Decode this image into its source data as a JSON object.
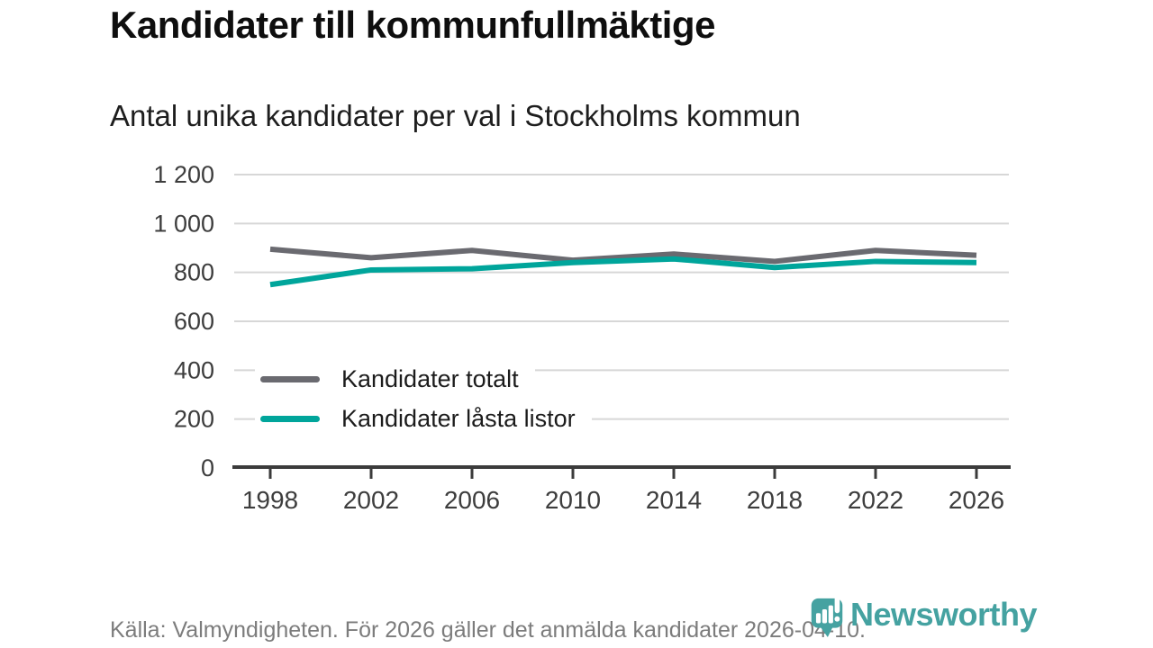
{
  "header": {
    "title": "Kandidater till kommunfullmäktige",
    "subtitle": "Antal unika kandidater per val i Stockholms kommun"
  },
  "chart_data": {
    "type": "line",
    "categories": [
      "1998",
      "2002",
      "2006",
      "2010",
      "2014",
      "2018",
      "2022",
      "2026"
    ],
    "series": [
      {
        "name": "Kandidater totalt",
        "color": "#6a6a70",
        "values": [
          895,
          860,
          890,
          850,
          875,
          845,
          890,
          870
        ]
      },
      {
        "name": "Kandidater låsta listor",
        "color": "#00a59b",
        "values": [
          750,
          810,
          815,
          840,
          855,
          820,
          845,
          840
        ]
      }
    ],
    "title": "Kandidater till kommunfullmäktige",
    "subtitle": "Antal unika kandidater per val i Stockholms kommun",
    "xlabel": "",
    "ylabel": "",
    "ylim": [
      0,
      1200
    ],
    "ytick_step": 200,
    "ytick_labels": [
      "0",
      "200",
      "400",
      "600",
      "800",
      "1 000",
      "1 200"
    ],
    "grid": "horizontal",
    "legend_position": "inside-left"
  },
  "footer": {
    "source": "Källa: Valmyndigheten. För 2026 gäller det anmälda kandidater 2026-04-10.",
    "brand": "Newsworthy"
  },
  "colors": {
    "line_total": "#6a6a70",
    "line_locked": "#00a59b",
    "axis": "#3b3b3b",
    "grid": "#d7d7d7",
    "tick_label": "#3d3d3d",
    "footer_text": "#7c7c7c",
    "brand_teal": "#45a2a1"
  }
}
